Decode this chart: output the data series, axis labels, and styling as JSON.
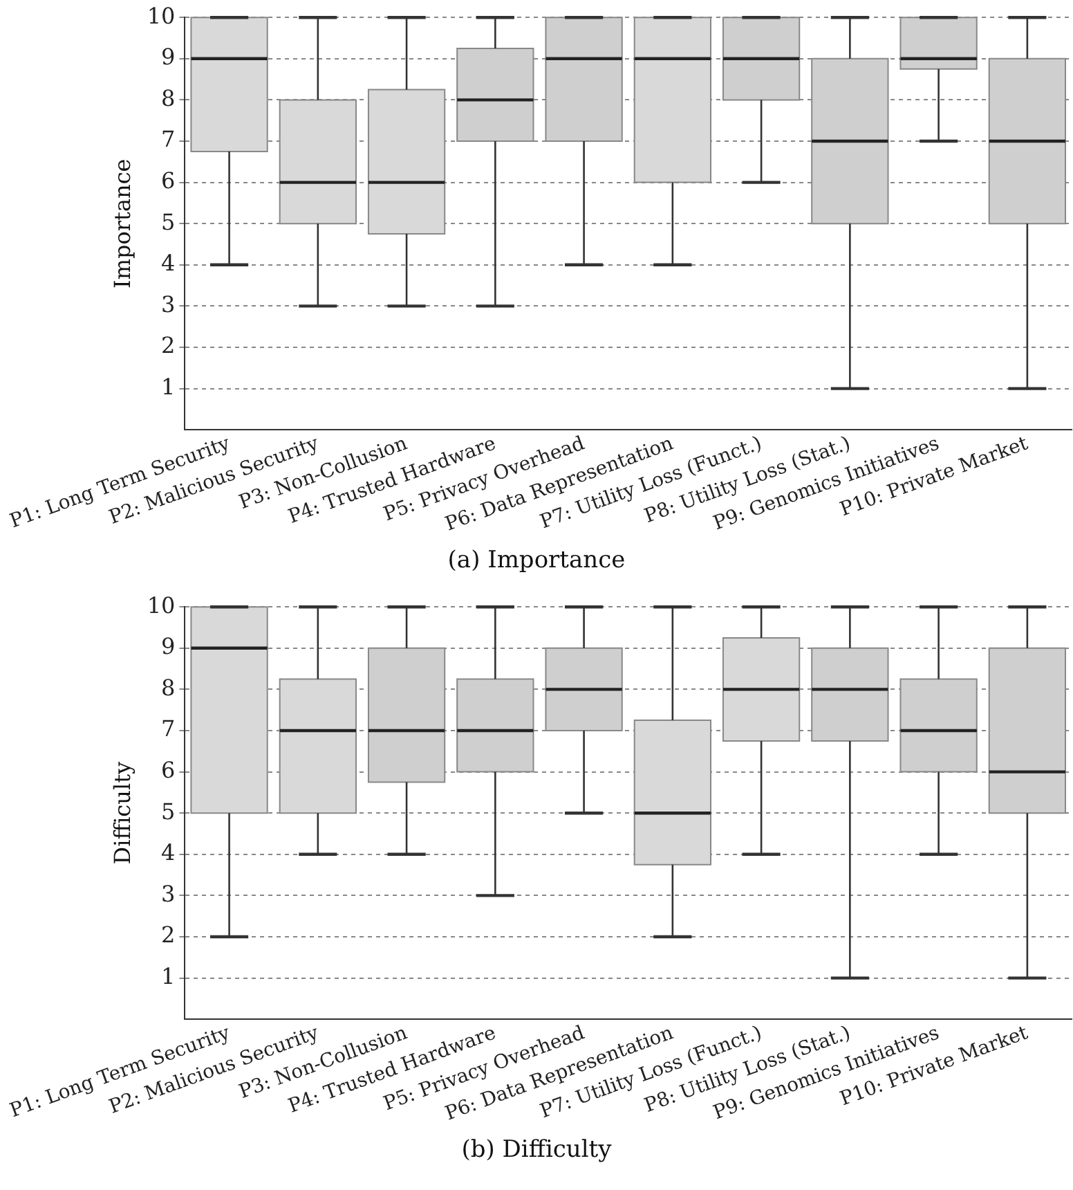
{
  "chart_data": [
    {
      "type": "box",
      "title": "(a) Importance",
      "ylabel": "Importance",
      "categories": [
        "P1: Long Term Security",
        "P2: Malicious Security",
        "P3: Non-Collusion",
        "P4: Trusted Hardware",
        "P5: Privacy Overhead",
        "P6: Data Representation",
        "P7: Utility Loss (Funct.)",
        "P8: Utility Loss (Stat.)",
        "P9: Genomics Initiatives",
        "P10: Private Market"
      ],
      "series": [
        {
          "colors": [
            "#d9d9d9",
            "#d9d9d9",
            "#d9d9d9",
            "#cfcfcf",
            "#cfcfcf",
            "#d9d9d9",
            "#cfcfcf",
            "#cfcfcf",
            "#cfcfcf",
            "#cfcfcf"
          ],
          "boxes": [
            {
              "low": 4,
              "q1": 6.75,
              "median": 9,
              "q3": 10,
              "high": 10
            },
            {
              "low": 3,
              "q1": 5,
              "median": 6,
              "q3": 8,
              "high": 10
            },
            {
              "low": 3,
              "q1": 4.75,
              "median": 6,
              "q3": 8.25,
              "high": 10
            },
            {
              "low": 3,
              "q1": 7,
              "median": 8,
              "q3": 9.25,
              "high": 10
            },
            {
              "low": 4,
              "q1": 7,
              "median": 9,
              "q3": 10,
              "high": 10
            },
            {
              "low": 4,
              "q1": 6,
              "median": 9,
              "q3": 10,
              "high": 10
            },
            {
              "low": 6,
              "q1": 8,
              "median": 9,
              "q3": 10,
              "high": 10
            },
            {
              "low": 1,
              "q1": 5,
              "median": 7,
              "q3": 9,
              "high": 10
            },
            {
              "low": 7,
              "q1": 8.75,
              "median": 9,
              "q3": 10,
              "high": 10
            },
            {
              "low": 1,
              "q1": 5,
              "median": 7,
              "q3": 9,
              "high": 10
            }
          ]
        }
      ],
      "ylim": [
        0,
        10
      ],
      "yticks": [
        1,
        2,
        3,
        4,
        5,
        6,
        7,
        8,
        9,
        10
      ],
      "grid": "y"
    },
    {
      "type": "box",
      "title": "(b) Difficulty",
      "ylabel": "Difficulty",
      "categories": [
        "P1: Long Term Security",
        "P2: Malicious Security",
        "P3: Non-Collusion",
        "P4: Trusted Hardware",
        "P5: Privacy Overhead",
        "P6: Data Representation",
        "P7: Utility Loss (Funct.)",
        "P8: Utility Loss (Stat.)",
        "P9: Genomics Initiatives",
        "P10: Private Market"
      ],
      "series": [
        {
          "colors": [
            "#d9d9d9",
            "#d9d9d9",
            "#cfcfcf",
            "#cfcfcf",
            "#cfcfcf",
            "#d9d9d9",
            "#d9d9d9",
            "#cfcfcf",
            "#cfcfcf",
            "#cfcfcf"
          ],
          "boxes": [
            {
              "low": 2,
              "q1": 5,
              "median": 9,
              "q3": 10,
              "high": 10
            },
            {
              "low": 4,
              "q1": 5,
              "median": 7,
              "q3": 8.25,
              "high": 10
            },
            {
              "low": 4,
              "q1": 5.75,
              "median": 7,
              "q3": 9,
              "high": 10
            },
            {
              "low": 3,
              "q1": 6,
              "median": 7,
              "q3": 8.25,
              "high": 10
            },
            {
              "low": 5,
              "q1": 7,
              "median": 8,
              "q3": 9,
              "high": 10
            },
            {
              "low": 2,
              "q1": 3.75,
              "median": 5,
              "q3": 7.25,
              "high": 10
            },
            {
              "low": 4,
              "q1": 6.75,
              "median": 8,
              "q3": 9.25,
              "high": 10
            },
            {
              "low": 1,
              "q1": 6.75,
              "median": 8,
              "q3": 9,
              "high": 10
            },
            {
              "low": 4,
              "q1": 6,
              "median": 7,
              "q3": 8.25,
              "high": 10
            },
            {
              "low": 1,
              "q1": 5,
              "median": 6,
              "q3": 9,
              "high": 10
            }
          ]
        }
      ],
      "ylim": [
        0,
        10
      ],
      "yticks": [
        1,
        2,
        3,
        4,
        5,
        6,
        7,
        8,
        9,
        10
      ],
      "grid": "y"
    }
  ]
}
